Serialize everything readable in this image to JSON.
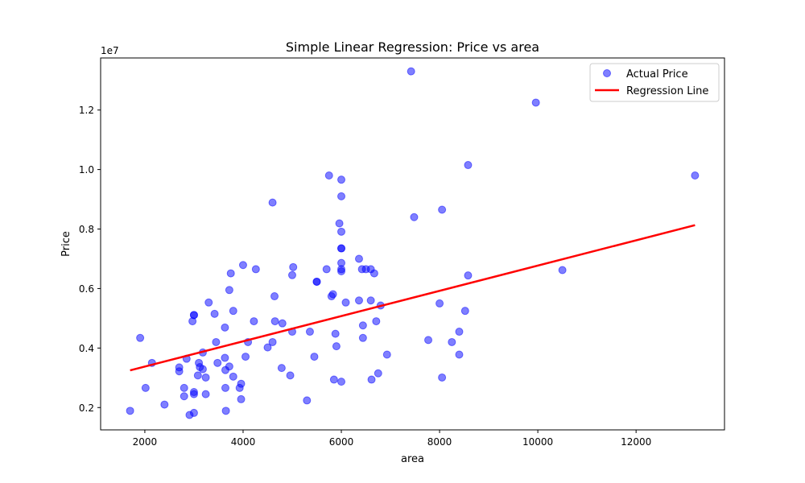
{
  "chart_data": {
    "type": "scatter",
    "title": "Simple Linear Regression: Price vs area",
    "xlabel": "area",
    "ylabel": "Price",
    "y_offset_label": "1e7",
    "xlim": [
      1100,
      13800
    ],
    "ylim": [
      1250000,
      13750000
    ],
    "x_ticks": [
      2000,
      4000,
      6000,
      8000,
      10000,
      12000
    ],
    "x_tick_labels": [
      "2000",
      "4000",
      "6000",
      "8000",
      "10000",
      "12000"
    ],
    "y_ticks": [
      2000000,
      4000000,
      6000000,
      8000000,
      10000000,
      12000000
    ],
    "y_tick_labels": [
      "0.2",
      "0.4",
      "0.6",
      "0.8",
      "1.0",
      "1.2"
    ],
    "grid": false,
    "legend_position": "top-right",
    "colors": {
      "points": "#0000ff",
      "line": "#ff0000"
    },
    "series": [
      {
        "name": "Actual Price",
        "kind": "scatter",
        "points": [
          [
            1700,
            1890000
          ],
          [
            1905,
            4340000
          ],
          [
            2015,
            2660000
          ],
          [
            2145,
            3500000
          ],
          [
            2400,
            2100000
          ],
          [
            2700,
            3220000
          ],
          [
            2700,
            3350000
          ],
          [
            2800,
            2660000
          ],
          [
            2800,
            2380000
          ],
          [
            2850,
            3640000
          ],
          [
            2910,
            1750000
          ],
          [
            2970,
            4900000
          ],
          [
            3000,
            5110000
          ],
          [
            3000,
            5110000
          ],
          [
            3000,
            2520000
          ],
          [
            3000,
            2450000
          ],
          [
            3000,
            1820000
          ],
          [
            3080,
            3080000
          ],
          [
            3100,
            3500000
          ],
          [
            3120,
            3360000
          ],
          [
            3180,
            3850000
          ],
          [
            3180,
            3290000
          ],
          [
            3240,
            3010000
          ],
          [
            3240,
            2450000
          ],
          [
            3300,
            5530000
          ],
          [
            3420,
            5150000
          ],
          [
            3450,
            4200000
          ],
          [
            3480,
            3500000
          ],
          [
            3630,
            4690000
          ],
          [
            3630,
            3670000
          ],
          [
            3640,
            3260000
          ],
          [
            3640,
            2660000
          ],
          [
            3650,
            1890000
          ],
          [
            3720,
            5950000
          ],
          [
            3720,
            3380000
          ],
          [
            3750,
            6510000
          ],
          [
            3800,
            5250000
          ],
          [
            3800,
            3040000
          ],
          [
            3930,
            2660000
          ],
          [
            3960,
            2800000
          ],
          [
            3960,
            2280000
          ],
          [
            4000,
            6790000
          ],
          [
            4050,
            3710000
          ],
          [
            4100,
            4200000
          ],
          [
            4220,
            4900000
          ],
          [
            4260,
            6650000
          ],
          [
            4500,
            4020000
          ],
          [
            4600,
            8890000
          ],
          [
            4600,
            4200000
          ],
          [
            4640,
            5740000
          ],
          [
            4650,
            4900000
          ],
          [
            4785,
            3330000
          ],
          [
            4800,
            4830000
          ],
          [
            4960,
            3080000
          ],
          [
            5000,
            6450000
          ],
          [
            5020,
            6720000
          ],
          [
            5000,
            4550000
          ],
          [
            5300,
            2240000
          ],
          [
            5360,
            4550000
          ],
          [
            5450,
            3710000
          ],
          [
            5500,
            6230000
          ],
          [
            5500,
            6230000
          ],
          [
            5700,
            6650000
          ],
          [
            5750,
            9800000
          ],
          [
            5800,
            5740000
          ],
          [
            5830,
            5810000
          ],
          [
            5850,
            2940000
          ],
          [
            5880,
            4480000
          ],
          [
            5900,
            4060000
          ],
          [
            5960,
            8190000
          ],
          [
            6000,
            9660000
          ],
          [
            6000,
            9100000
          ],
          [
            6000,
            7910000
          ],
          [
            6000,
            7350000
          ],
          [
            6000,
            7350000
          ],
          [
            6000,
            6860000
          ],
          [
            6000,
            6650000
          ],
          [
            6000,
            6580000
          ],
          [
            6000,
            2870000
          ],
          [
            6090,
            5530000
          ],
          [
            6360,
            7000000
          ],
          [
            6360,
            5600000
          ],
          [
            6420,
            6650000
          ],
          [
            6440,
            4760000
          ],
          [
            6440,
            4340000
          ],
          [
            6500,
            6650000
          ],
          [
            6600,
            6650000
          ],
          [
            6600,
            5600000
          ],
          [
            6615,
            2940000
          ],
          [
            6670,
            6510000
          ],
          [
            6710,
            4900000
          ],
          [
            6750,
            3150000
          ],
          [
            6800,
            5430000
          ],
          [
            6930,
            3780000
          ],
          [
            7420,
            13300000
          ],
          [
            7482,
            8400000
          ],
          [
            7770,
            4270000
          ],
          [
            8000,
            5500000
          ],
          [
            8050,
            8650000
          ],
          [
            8050,
            3010000
          ],
          [
            8250,
            4200000
          ],
          [
            8400,
            4550000
          ],
          [
            8400,
            3780000
          ],
          [
            8520,
            5250000
          ],
          [
            8580,
            10150000
          ],
          [
            8580,
            6440000
          ],
          [
            9960,
            12250000
          ],
          [
            10500,
            6620000
          ],
          [
            13200,
            9800000
          ]
        ]
      },
      {
        "name": "Regression Line",
        "kind": "line",
        "points": [
          [
            1700,
            3250000
          ],
          [
            13200,
            8130000
          ]
        ]
      }
    ]
  }
}
